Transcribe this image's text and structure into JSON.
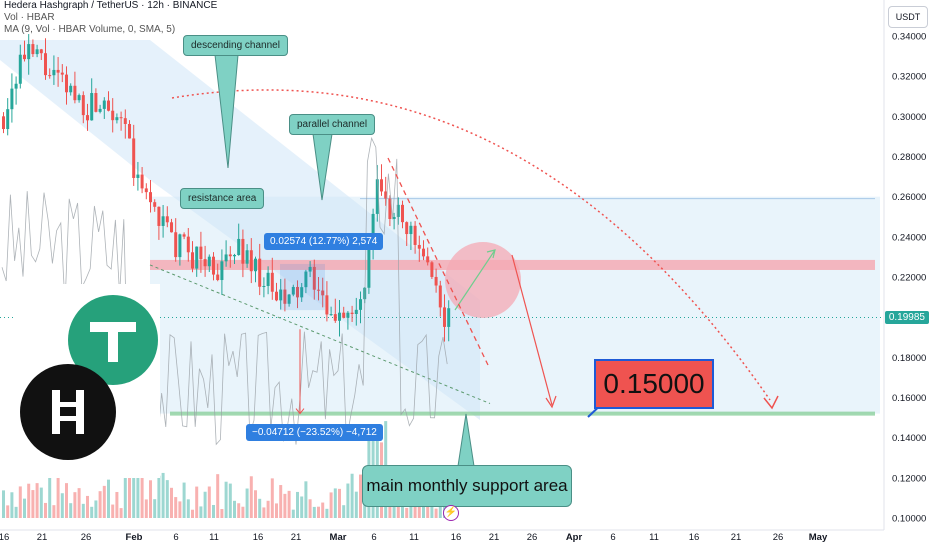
{
  "header": {
    "symbol_line": "Hedera Hashgraph / TetherUS · 12h · BINANCE",
    "vol_line": "Vol · HBAR",
    "ma_line": "MA (9, Vol · HBAR Volume, 0, SMA, 5)"
  },
  "axis": {
    "currency_button": "USDT",
    "current_price": "0.19985"
  },
  "annotations": {
    "descending_channel": "descending channel",
    "parallel_channel": "parallel channel",
    "resistance_area": "resistance area",
    "measure_up": "0.02574 (12.77%) 2,574",
    "measure_down": "−0.04712 (−23.52%) −4,712",
    "target_price": "0.15000",
    "support_area": "main monthly support area"
  },
  "colors": {
    "bull": "#26a69a",
    "bear": "#ef5350",
    "channel_fill": "#cfe6f7",
    "support_line": "#8bcf9e",
    "resistance_band": "#f4aab4",
    "measure": "#2f7fe0",
    "callout": "#7fd1c4"
  },
  "chart_data": {
    "type": "candlestick",
    "title": "Hedera Hashgraph / TetherUS · 12h · BINANCE",
    "x_ticks": [
      "16",
      "21",
      "26",
      "Feb",
      "6",
      "11",
      "16",
      "21",
      "Mar",
      "6",
      "11",
      "16",
      "21",
      "26",
      "Apr",
      "6",
      "11",
      "16",
      "21",
      "26",
      "May"
    ],
    "y_ticks": [
      "0.34000",
      "0.32000",
      "0.30000",
      "0.28000",
      "0.26000",
      "0.24000",
      "0.22000",
      "0.20000",
      "0.18000",
      "0.16000",
      "0.14000",
      "0.12000",
      "0.10000"
    ],
    "ylim": [
      0.095,
      0.345
    ],
    "grid": false,
    "current_price": 0.19985,
    "target_price": 0.15,
    "support_level": 0.152,
    "resistance_level": 0.226,
    "close_path": [
      [
        0,
        0.3
      ],
      [
        4,
        0.328
      ],
      [
        8,
        0.33
      ],
      [
        12,
        0.318
      ],
      [
        16,
        0.312
      ],
      [
        20,
        0.305
      ],
      [
        24,
        0.31
      ],
      [
        28,
        0.3
      ],
      [
        32,
        0.265
      ],
      [
        36,
        0.255
      ],
      [
        40,
        0.238
      ],
      [
        44,
        0.232
      ],
      [
        48,
        0.228
      ],
      [
        52,
        0.223
      ],
      [
        56,
        0.235
      ],
      [
        60,
        0.225
      ],
      [
        64,
        0.212
      ],
      [
        67,
        0.206
      ],
      [
        70,
        0.213
      ],
      [
        74,
        0.22
      ],
      [
        76,
        0.205
      ],
      [
        78,
        0.196
      ],
      [
        80,
        0.205
      ],
      [
        84,
        0.2
      ],
      [
        86,
        0.215
      ],
      [
        88,
        0.245
      ],
      [
        89,
        0.27
      ],
      [
        90,
        0.262
      ],
      [
        92,
        0.248
      ],
      [
        94,
        0.258
      ],
      [
        96,
        0.245
      ],
      [
        98,
        0.235
      ],
      [
        100,
        0.228
      ],
      [
        102,
        0.215
      ],
      [
        104,
        0.205
      ],
      [
        106,
        0.199
      ]
    ],
    "volume_note": "Vol · HBAR"
  }
}
